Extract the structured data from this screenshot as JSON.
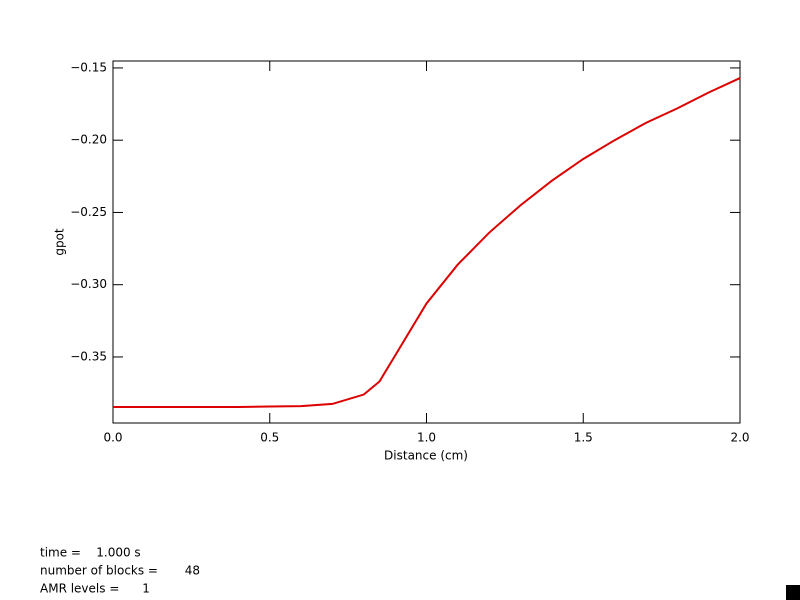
{
  "chart_data": {
    "type": "line",
    "x_label": "Distance (cm)",
    "y_label": "gpot",
    "x": [
      0.0,
      0.1,
      0.2,
      0.3,
      0.4,
      0.5,
      0.6,
      0.7,
      0.8,
      0.85,
      0.9,
      1.0,
      1.1,
      1.2,
      1.3,
      1.4,
      1.5,
      1.6,
      1.7,
      1.8,
      1.9,
      2.0
    ],
    "series": [
      {
        "color": "#dd0000",
        "values": [
          -0.3846,
          -0.3846,
          -0.3846,
          -0.3846,
          -0.3846,
          -0.3843,
          -0.384,
          -0.3825,
          -0.376,
          -0.367,
          -0.349,
          -0.313,
          -0.286,
          -0.264,
          -0.245,
          -0.228,
          -0.213,
          -0.2,
          -0.188,
          -0.178,
          -0.167,
          -0.157
        ]
      }
    ],
    "xlim": [
      0,
      2
    ],
    "xticks": [
      {
        "value": 0,
        "label": "0.0"
      },
      0.5,
      {
        "value": 1,
        "label": "1.0"
      },
      1.5,
      {
        "value": 2,
        "label": "2.0"
      }
    ],
    "ylim": [
      -0.3957,
      -0.1452
    ],
    "yticks": [
      {
        "value": -0.35,
        "label": "−0.35"
      },
      {
        "value": -0.3,
        "label": "−0.30"
      },
      {
        "value": -0.25,
        "label": "−0.25"
      },
      {
        "value": -0.2,
        "label": "−0.20"
      },
      {
        "value": -0.15,
        "label": "−0.15"
      }
    ],
    "annotations": [
      "time =    1.000 s",
      "number of blocks =       48",
      "AMR levels =      1"
    ]
  }
}
